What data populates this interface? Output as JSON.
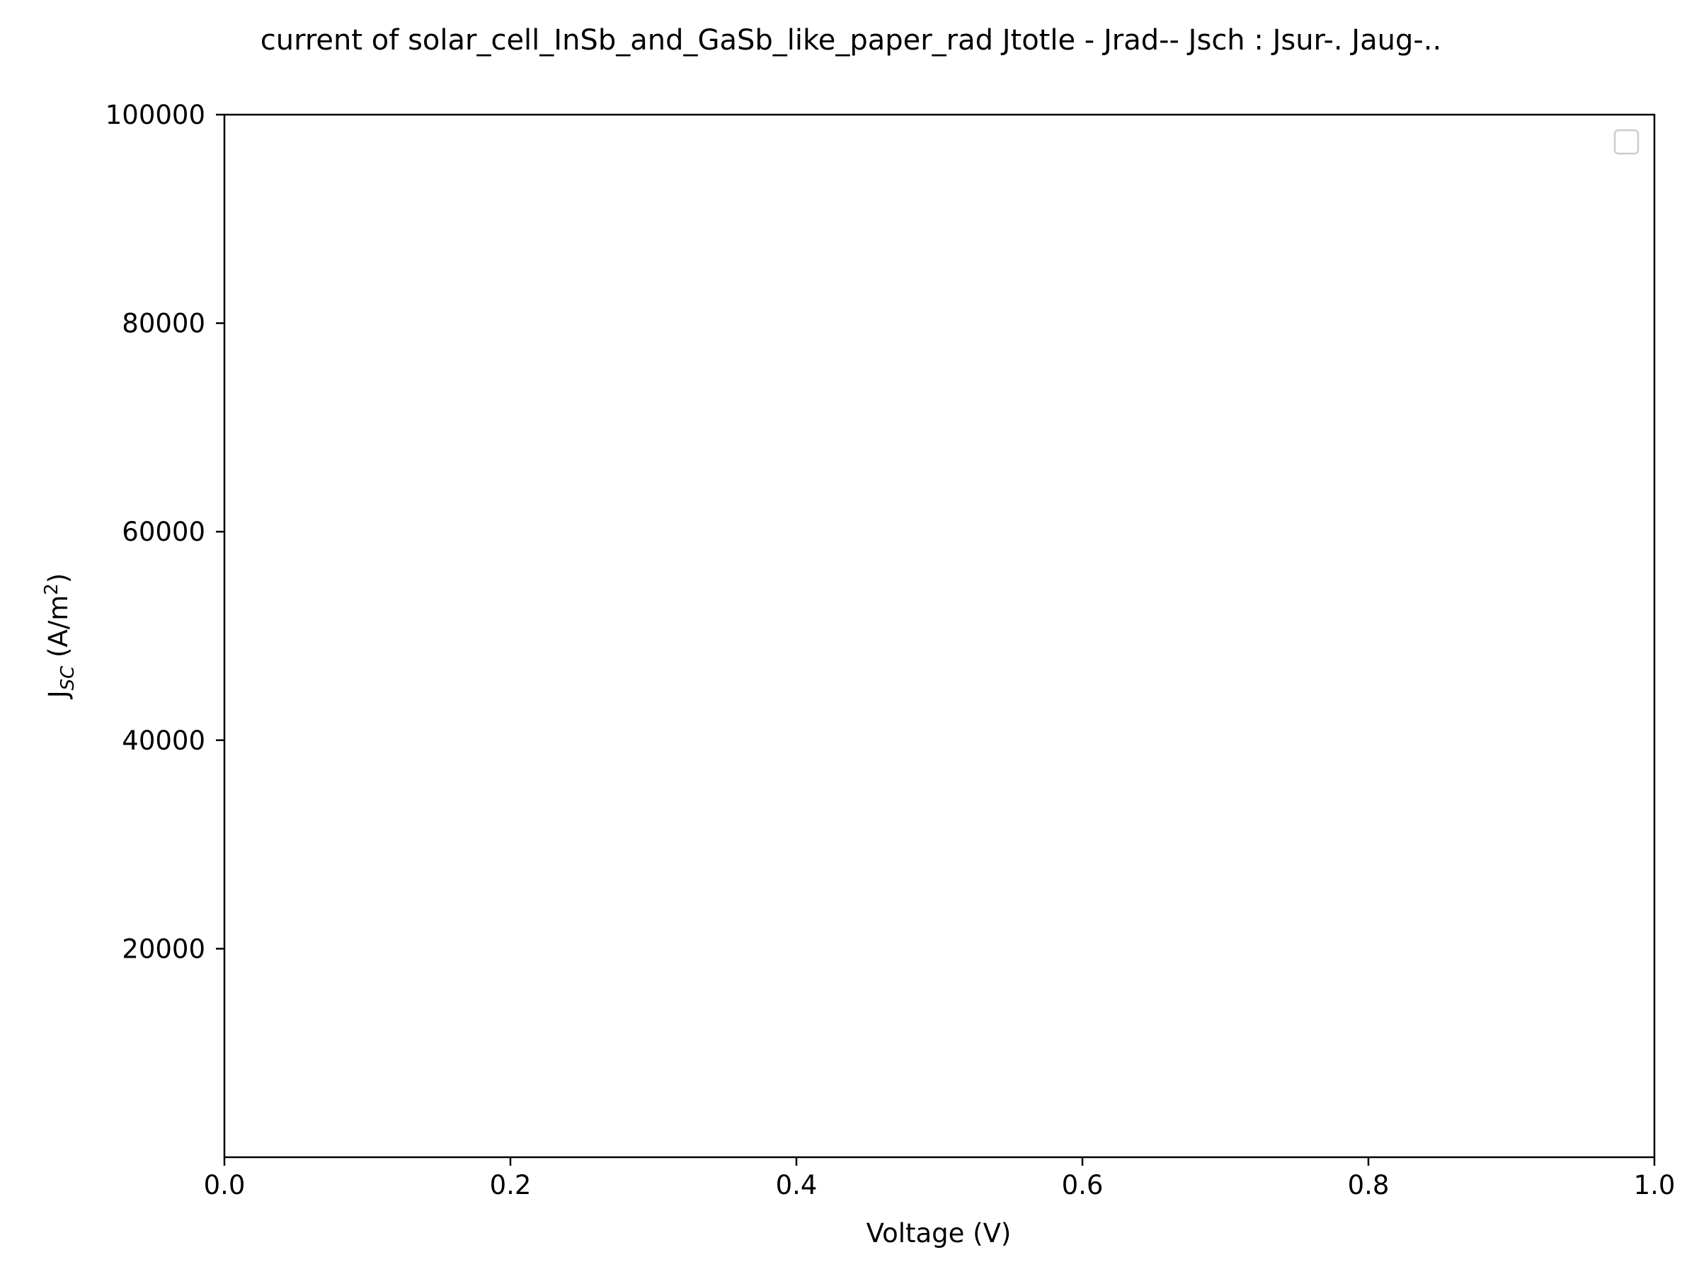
{
  "chart_data": {
    "type": "line",
    "title": "current of solar_cell_InSb_and_GaSb_like_paper_rad Jtotle - Jrad-- Jsch : Jsur-. Jaug-..",
    "xlabel": "Voltage (V)",
    "ylabel": {
      "prefix": "J",
      "subscript": "SC",
      "units_prefix": " (A/m",
      "units_superscript": "2",
      "units_suffix": ")"
    },
    "xlim": [
      0.0,
      1.0
    ],
    "ylim": [
      0,
      100000
    ],
    "xticks": [
      0.0,
      0.2,
      0.4,
      0.6,
      0.8,
      1.0
    ],
    "xtick_labels": [
      "0.0",
      "0.2",
      "0.4",
      "0.6",
      "0.8",
      "1.0"
    ],
    "yticks": [
      20000,
      40000,
      60000,
      80000,
      100000
    ],
    "ytick_labels": [
      "20000",
      "40000",
      "60000",
      "80000",
      "100000"
    ],
    "series": [],
    "legend": {
      "placement": "top-right",
      "entries": []
    },
    "grid": false,
    "colors": {
      "axis": "#000000",
      "background": "#ffffff",
      "legend_border": "#cccccc"
    }
  }
}
